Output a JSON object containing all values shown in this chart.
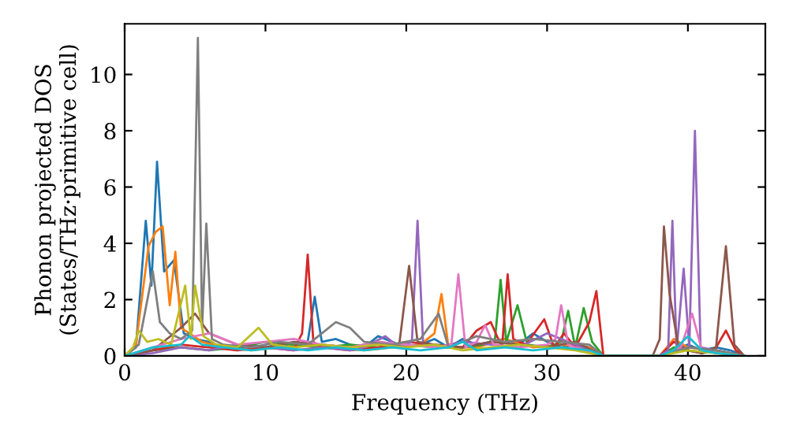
{
  "chart_data": {
    "type": "line",
    "xlabel": "Frequency (THz)",
    "ylabel": "Phonon projected DOS\n(States/THz·primitive cell)",
    "xlim": [
      0,
      45.5
    ],
    "ylim": [
      0,
      11.8
    ],
    "xticks": [
      0,
      10,
      20,
      30,
      40
    ],
    "yticks": [
      0,
      2,
      4,
      6,
      8,
      10
    ],
    "grid": false,
    "legend": false,
    "marker": "none",
    "line_style": "solid",
    "series": [
      {
        "color": "#1f77b4",
        "x": [
          0,
          0.8,
          1.5,
          1.9,
          2.3,
          2.8,
          3.5,
          4.2,
          5,
          6,
          7,
          8,
          9,
          10,
          11,
          12,
          13,
          13.5,
          14,
          15,
          16,
          17,
          18,
          19,
          20,
          21,
          22,
          23,
          24,
          25,
          26,
          27,
          28,
          29,
          30,
          31,
          32,
          33,
          34,
          38,
          39,
          40,
          41,
          42,
          43,
          44
        ],
        "values": [
          0,
          0.3,
          4.8,
          2.5,
          6.9,
          3,
          3.4,
          0.8,
          0.6,
          0.5,
          0.3,
          0.2,
          0.4,
          0.3,
          0.4,
          0.3,
          0.5,
          2.1,
          0.5,
          0.6,
          0.4,
          0.3,
          0.7,
          0.5,
          0.3,
          0.4,
          0.6,
          0.3,
          0.6,
          0.4,
          0.5,
          0.6,
          0.4,
          0.8,
          0.5,
          0.3,
          0.4,
          0.3,
          0,
          0,
          0.2,
          0.4,
          0.2,
          0.3,
          0.2,
          0
        ]
      },
      {
        "color": "#ff7f0e",
        "x": [
          0,
          0.8,
          1.7,
          2.2,
          2.7,
          3.2,
          3.6,
          4,
          4.6,
          5.5,
          7,
          9,
          11,
          13,
          15,
          17,
          19,
          21,
          22,
          22.5,
          23,
          25,
          27,
          29,
          31,
          33,
          34,
          38,
          39,
          40,
          42,
          44
        ],
        "values": [
          0,
          0.4,
          3.9,
          4.4,
          4.6,
          1.8,
          3.7,
          1,
          0.8,
          0.5,
          0.3,
          0.2,
          0.3,
          0.4,
          0.3,
          0.2,
          0.3,
          0.4,
          0.8,
          2.2,
          0.3,
          0.3,
          0.6,
          0.3,
          0.4,
          0.3,
          0,
          0,
          0.6,
          0.3,
          0.2,
          0
        ]
      },
      {
        "color": "#2ca02c",
        "x": [
          0,
          2,
          4,
          6,
          8,
          10,
          12,
          14,
          16,
          18,
          20,
          22,
          24,
          25.5,
          26.3,
          26.7,
          27.1,
          27.9,
          28.6,
          30,
          31,
          31.5,
          32,
          32.6,
          33.2,
          34,
          38,
          39,
          40,
          41,
          42,
          44
        ],
        "values": [
          0,
          0.2,
          0.3,
          0.2,
          0.3,
          0.5,
          0.4,
          0.3,
          0.4,
          0.3,
          0.4,
          0.3,
          0.3,
          0.4,
          0.6,
          2.7,
          0.5,
          1.8,
          0.4,
          0.3,
          0.5,
          1.6,
          0.3,
          1.7,
          0.5,
          0,
          0,
          0.3,
          0.2,
          0.1,
          0.2,
          0
        ]
      },
      {
        "color": "#d62728",
        "x": [
          0,
          2,
          4,
          6,
          8,
          10,
          12,
          12.6,
          13,
          13.4,
          14,
          16,
          18,
          20,
          22,
          24,
          25,
          26,
          26.8,
          27.2,
          27.6,
          28.5,
          29.8,
          30.5,
          31.2,
          32,
          33,
          33.5,
          34,
          38,
          39,
          40,
          41,
          42,
          42.7,
          43.4,
          44
        ],
        "values": [
          0,
          0.2,
          0.4,
          0.3,
          0.2,
          0.3,
          0.2,
          0.8,
          3.6,
          0.5,
          0.3,
          0.2,
          0.3,
          0.5,
          0.4,
          0.3,
          0.9,
          1.2,
          0.3,
          2.9,
          0.6,
          0.4,
          1.3,
          0.3,
          0.8,
          0.3,
          1.2,
          2.3,
          0,
          0,
          0.5,
          0.2,
          0.1,
          0.3,
          0.9,
          0.2,
          0
        ]
      },
      {
        "color": "#9467bd",
        "x": [
          0,
          2,
          4,
          6,
          8,
          10,
          12,
          14,
          16,
          17,
          18.5,
          19.5,
          20.4,
          20.8,
          21.2,
          22,
          24,
          26,
          28,
          30,
          32,
          34,
          38,
          38.6,
          38.9,
          39.2,
          39.7,
          40.1,
          40.5,
          40.9,
          42,
          44
        ],
        "values": [
          0,
          0.1,
          0.3,
          0.2,
          0.4,
          0.3,
          0.2,
          0.3,
          0.2,
          0.3,
          0.7,
          0.3,
          0.5,
          4.8,
          0.4,
          0.3,
          0.5,
          0.4,
          0.3,
          0.8,
          0.4,
          0,
          0,
          0.2,
          4.8,
          0.2,
          3.1,
          0.3,
          8,
          0.3,
          0.2,
          0
        ]
      },
      {
        "color": "#8c564b",
        "x": [
          0,
          2,
          3,
          4,
          5,
          6,
          8,
          10,
          12,
          14,
          16,
          18,
          19.5,
          20.2,
          20.8,
          22,
          24,
          26,
          28,
          30,
          32,
          34,
          37.5,
          38,
          38.3,
          38.7,
          39.3,
          40,
          41,
          42,
          42.7,
          43.3,
          44
        ],
        "values": [
          0,
          0.2,
          0.6,
          1,
          1.5,
          0.8,
          0.4,
          0.3,
          0.5,
          0.4,
          0.3,
          0.5,
          0.4,
          3.2,
          0.5,
          0.4,
          0.3,
          0.5,
          0.4,
          0.3,
          0.5,
          0,
          0,
          0.6,
          4.6,
          2.2,
          0.4,
          0.2,
          0.1,
          0.3,
          3.9,
          0.4,
          0
        ]
      },
      {
        "color": "#e377c2",
        "x": [
          0,
          2,
          4,
          6,
          8,
          10,
          12,
          14,
          16,
          18,
          20,
          22,
          23.2,
          23.7,
          24.2,
          25,
          25.6,
          26.2,
          28,
          30,
          30.6,
          31,
          31.5,
          32,
          34,
          38,
          39.5,
          40.3,
          41,
          42,
          44
        ],
        "values": [
          0,
          0.3,
          0.6,
          0.8,
          0.4,
          0.5,
          0.6,
          0.4,
          0.3,
          0.5,
          0.4,
          0.3,
          0.4,
          2.9,
          0.3,
          0.5,
          1.1,
          0.4,
          0.3,
          0.4,
          0.6,
          1.8,
          0.4,
          0.3,
          0,
          0,
          0.3,
          1.5,
          0.2,
          0.1,
          0
        ]
      },
      {
        "color": "#7f7f7f",
        "x": [
          0,
          1,
          2,
          2.5,
          3.2,
          4,
          4.8,
          5.2,
          5.5,
          5.8,
          6.2,
          7,
          9,
          11,
          13,
          14,
          15,
          16,
          17,
          19,
          21,
          22.3,
          23,
          25,
          27,
          29,
          31,
          33,
          34,
          38,
          40,
          42,
          44
        ],
        "values": [
          0,
          0.4,
          3,
          1.2,
          0.8,
          0.6,
          0.9,
          11.3,
          1,
          4.7,
          0.6,
          0.4,
          0.3,
          0.5,
          0.4,
          0.8,
          1.2,
          1,
          0.5,
          0.4,
          0.6,
          1.5,
          0.3,
          0.7,
          0.5,
          0.6,
          0.5,
          0.4,
          0,
          0,
          0.3,
          0.2,
          0
        ]
      },
      {
        "color": "#bcbd22",
        "x": [
          0,
          0.6,
          1,
          1.6,
          2.4,
          3.3,
          4.3,
          4.7,
          5,
          5.6,
          6.5,
          8,
          9.5,
          10.5,
          12,
          14,
          16,
          18,
          20,
          22,
          24,
          26,
          28,
          30,
          32,
          34,
          38,
          40,
          42,
          44
        ],
        "values": [
          0,
          0.3,
          0.9,
          0.5,
          0.6,
          0.4,
          2.5,
          0.6,
          2.5,
          0.7,
          0.4,
          0.3,
          1,
          0.4,
          0.3,
          0.4,
          0.3,
          0.4,
          0.3,
          0.4,
          0.2,
          0.3,
          0.4,
          0.3,
          0.2,
          0,
          0,
          0.2,
          0.1,
          0
        ]
      },
      {
        "color": "#17becf",
        "x": [
          0,
          2,
          4,
          4.6,
          5.5,
          7,
          9,
          11,
          13,
          15,
          17,
          19,
          21,
          23,
          24,
          25,
          27,
          29,
          31,
          33,
          34,
          38,
          39,
          40,
          41,
          42,
          44
        ],
        "values": [
          0,
          0.3,
          0.4,
          0.7,
          0.4,
          0.3,
          0.2,
          0.3,
          0.2,
          0.3,
          0.2,
          0.3,
          0.2,
          0.3,
          0.5,
          0.2,
          0.3,
          0.2,
          0.3,
          0.2,
          0,
          0,
          0.2,
          0.7,
          0.2,
          0.1,
          0
        ]
      }
    ]
  }
}
